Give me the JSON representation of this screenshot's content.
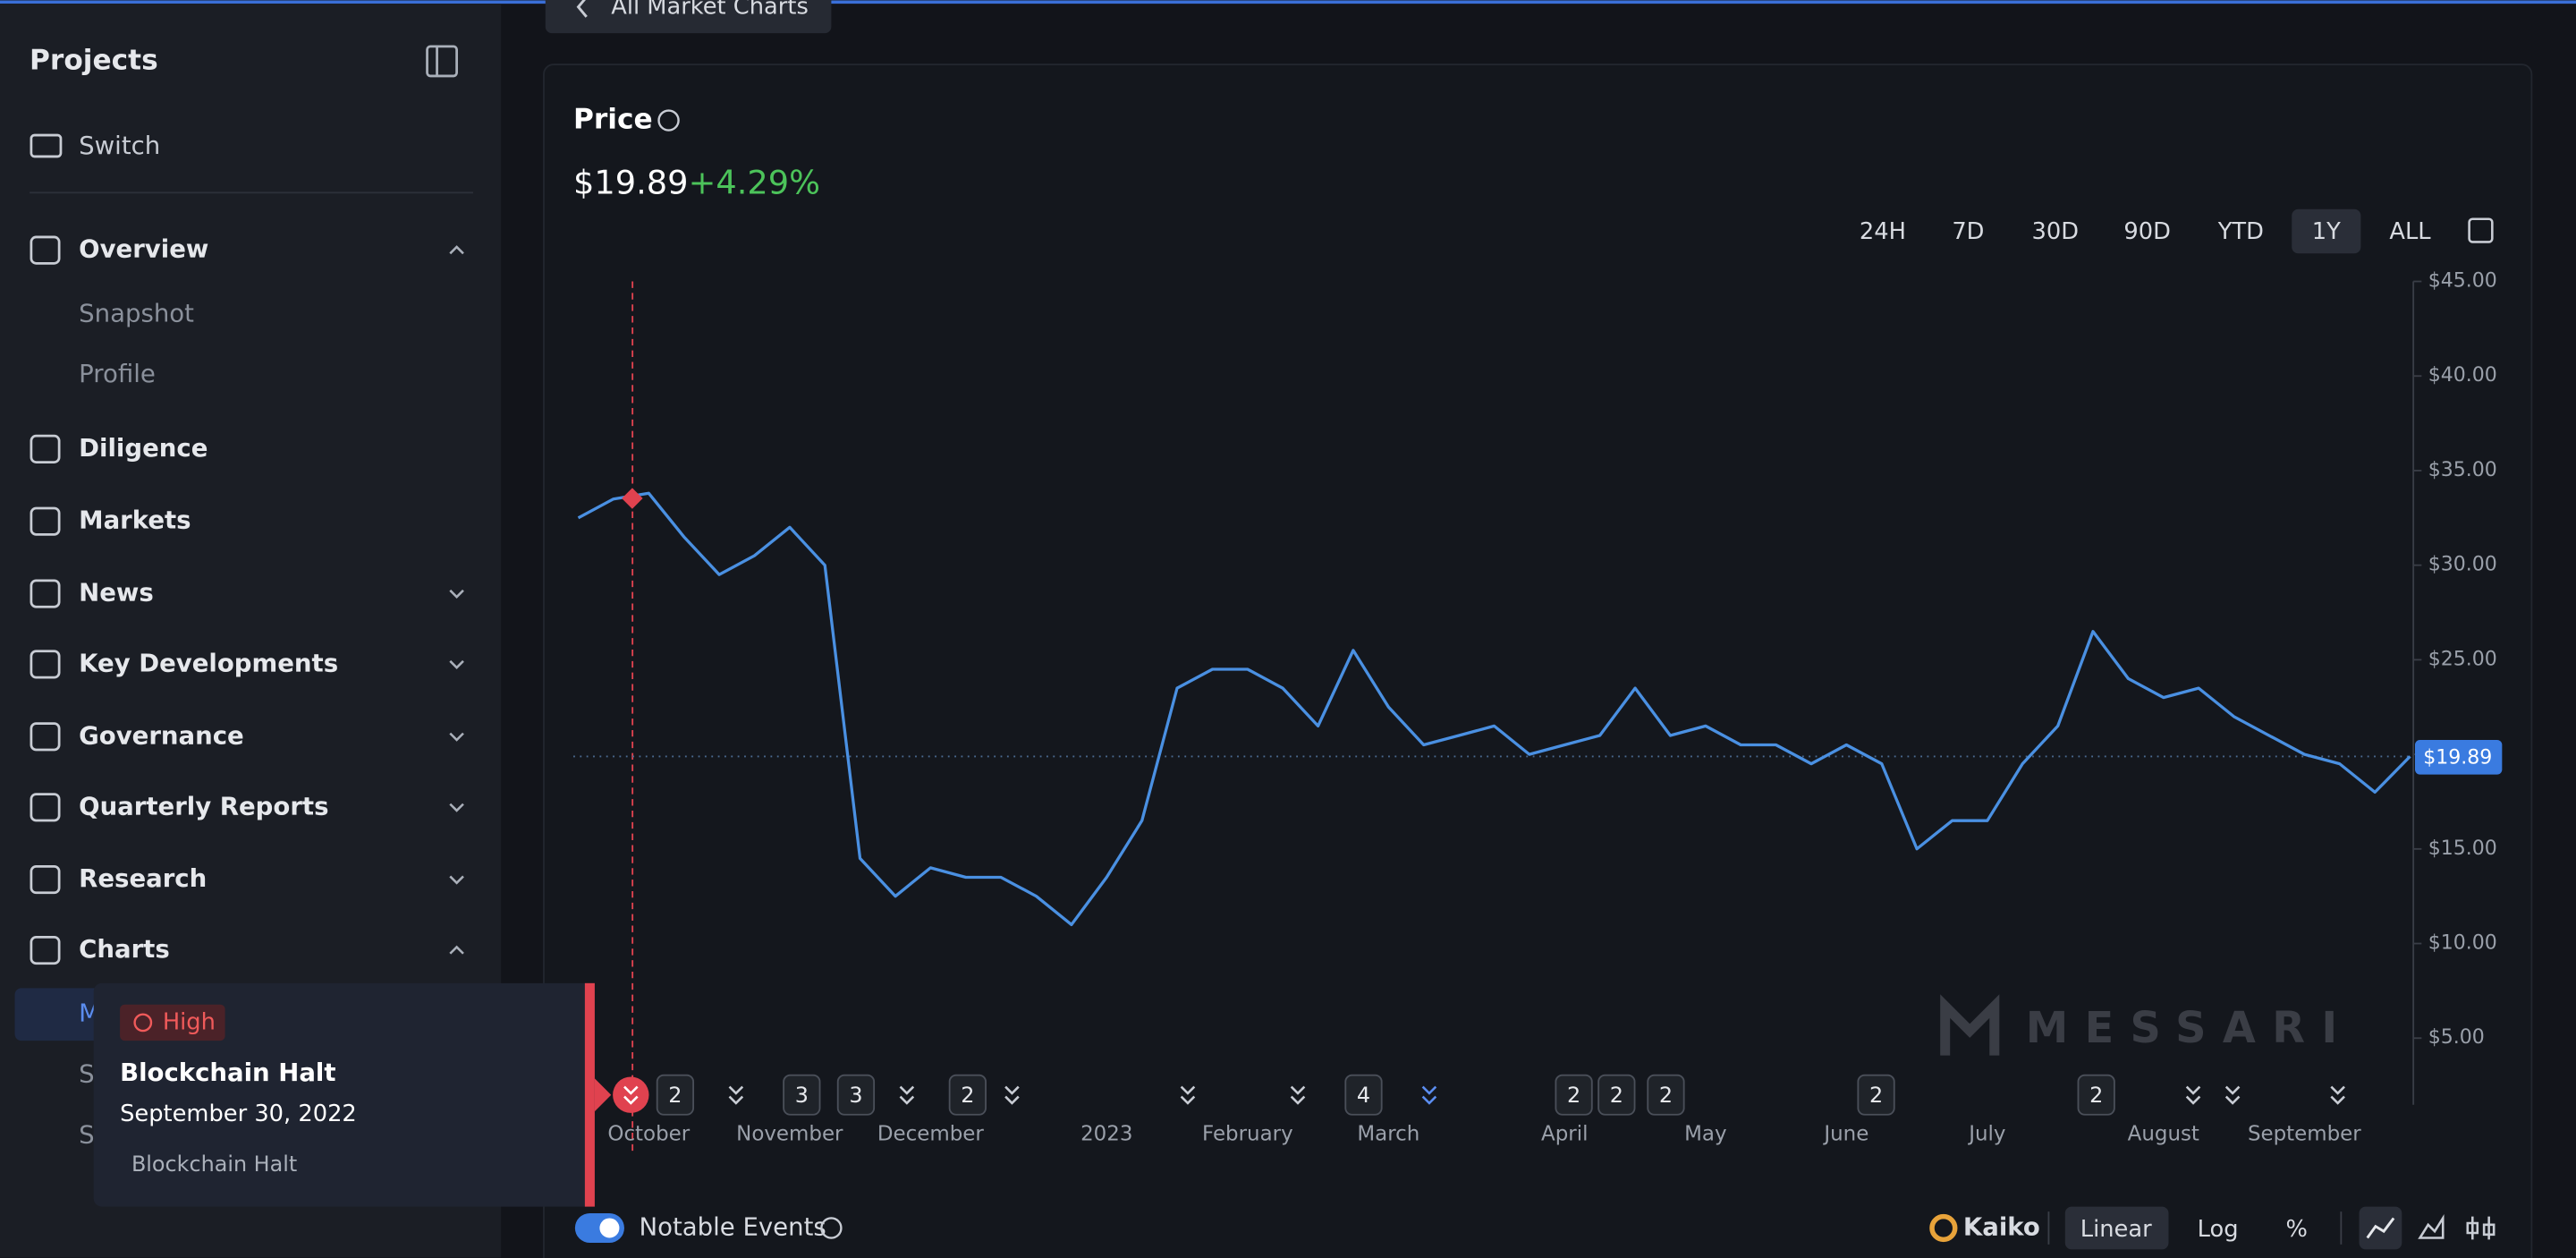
{
  "sidebar": {
    "title": "Projects",
    "switch": "Switch",
    "items": [
      {
        "label": "Overview",
        "chevron": "up",
        "children": [
          "Snapshot",
          "Profile"
        ]
      },
      {
        "label": "Diligence"
      },
      {
        "label": "Markets"
      },
      {
        "label": "News",
        "chevron": "down"
      },
      {
        "label": "Key Developments",
        "chevron": "down"
      },
      {
        "label": "Governance",
        "chevron": "down"
      },
      {
        "label": "Quarterly Reports",
        "chevron": "down"
      },
      {
        "label": "Research",
        "chevron": "down"
      },
      {
        "label": "Charts",
        "chevron": "up",
        "children": [
          "M",
          "S",
          "S"
        ]
      }
    ]
  },
  "back_button": "All Market Charts",
  "panel": {
    "price": "$19.89",
    "change": "+4.29%",
    "ranges": [
      "24H",
      "7D",
      "30D",
      "90D",
      "YTD",
      "1Y",
      "ALL"
    ],
    "active_range": 5
  },
  "chart_data": {
    "type": "line",
    "title": "Price",
    "color": "#4a90e2",
    "categories": [
      null,
      null,
      "October",
      null,
      null,
      null,
      "November",
      null,
      null,
      null,
      "December",
      null,
      null,
      null,
      null,
      "2023",
      null,
      null,
      null,
      "February",
      null,
      null,
      null,
      "March",
      null,
      null,
      null,
      null,
      "April",
      null,
      null,
      null,
      "May",
      null,
      null,
      null,
      "June",
      null,
      null,
      null,
      "July",
      null,
      null,
      null,
      null,
      "August",
      null,
      null,
      null,
      "September",
      null,
      null,
      null
    ],
    "values": [
      32.5,
      33.5,
      33.8,
      31.5,
      29.5,
      30.5,
      32,
      30,
      14.5,
      12.5,
      14,
      13.5,
      13.5,
      12.5,
      11,
      13.5,
      16.5,
      23.5,
      24.5,
      24.5,
      23.5,
      21.5,
      25.5,
      22.5,
      20.5,
      21,
      21.5,
      20,
      20.5,
      21,
      23.5,
      21,
      21.5,
      20.5,
      20.5,
      19.5,
      20.5,
      19.5,
      15,
      16.5,
      16.5,
      19.5,
      21.5,
      26.5,
      24,
      23,
      23.5,
      22,
      21,
      20,
      19.5,
      18,
      19.89
    ],
    "ylim": [
      0,
      45
    ],
    "yticks": [
      {
        "value": 5,
        "label": "$5.00"
      },
      {
        "value": 10,
        "label": "$10.00"
      },
      {
        "value": 15,
        "label": "$15.00"
      },
      {
        "value": 20,
        "label": "$20.00"
      },
      {
        "value": 25,
        "label": "$25.00"
      },
      {
        "value": 30,
        "label": "$30.00"
      },
      {
        "value": 35,
        "label": "$35.00"
      },
      {
        "value": 40,
        "label": "$40.00"
      },
      {
        "value": 45,
        "label": "$45.00"
      }
    ],
    "grid": false,
    "watermark": "MESSARI"
  },
  "events": [
    "2",
    "3",
    "3",
    "2",
    "4",
    "2",
    "2",
    "2",
    "2",
    "2"
  ],
  "tooltip": {
    "severity": "High",
    "title": "Blockchain Halt",
    "date": "September 30, 2022",
    "description": "Blockchain Halt"
  },
  "footer": {
    "toggle": "Notable Events",
    "source": "Kaiko",
    "scales": [
      "Linear",
      "Log",
      "%"
    ],
    "active_scale": 0
  }
}
